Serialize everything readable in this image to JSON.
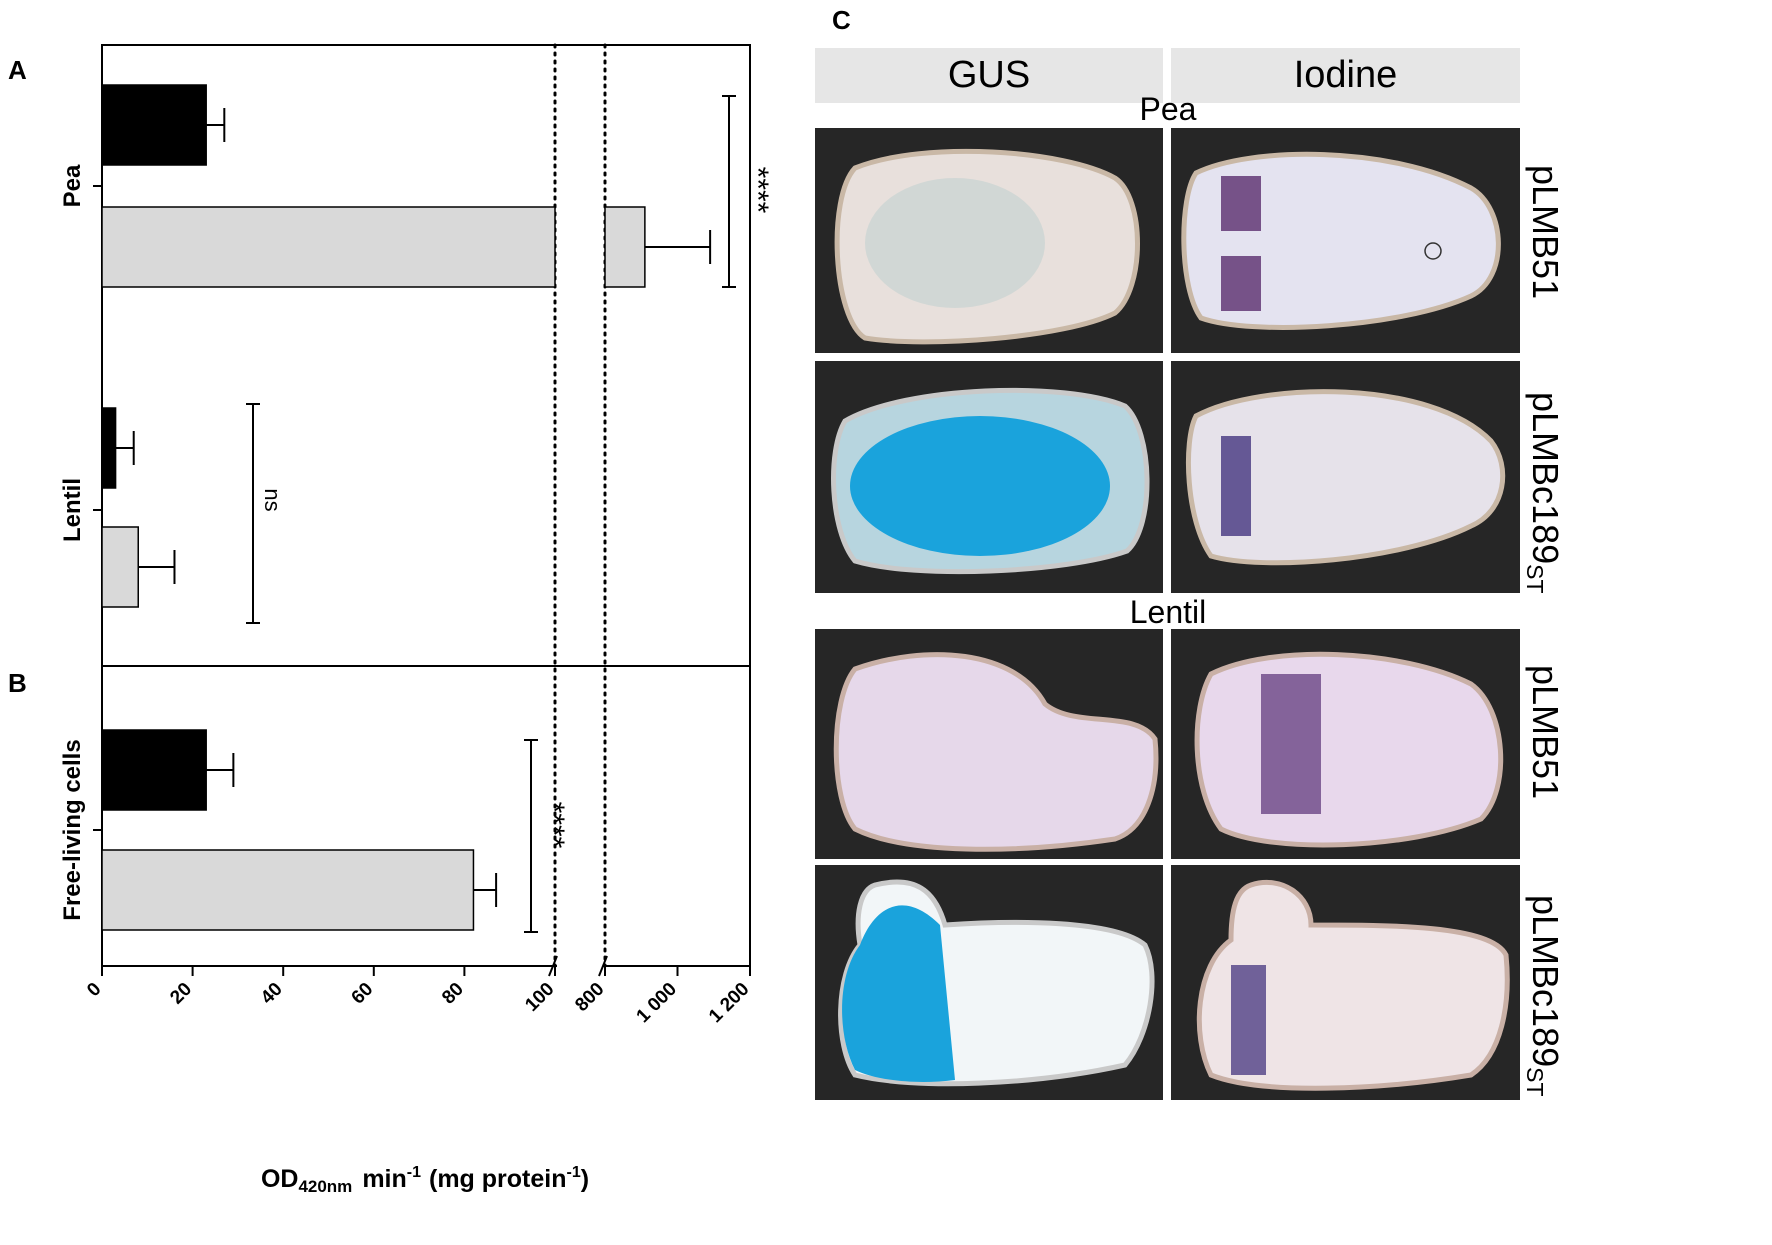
{
  "panels": {
    "a": "A",
    "b": "B",
    "c": "C"
  },
  "chart_data": {
    "type": "bar",
    "orientation": "horizontal",
    "x_axis": {
      "label_main": "OD",
      "label_sub": "420nm",
      "label_rest": "min",
      "label_exp1": "-1",
      "label_paren": "(mg protein",
      "label_exp2": "-1",
      "label_close": ")",
      "broken": true,
      "segment1": {
        "range": [
          0,
          100
        ],
        "ticks": [
          "0",
          "20",
          "40",
          "60",
          "80",
          "100"
        ]
      },
      "segment2": {
        "range": [
          800,
          1200
        ],
        "ticks": [
          "800",
          "1 000",
          "1 200"
        ]
      }
    },
    "groups": [
      {
        "name": "Pea",
        "panel": "A",
        "values": [
          23,
          910
        ],
        "errors": [
          4,
          180
        ],
        "significance": "****"
      },
      {
        "name": "Lentil",
        "panel": "A",
        "values": [
          3,
          8
        ],
        "errors": [
          4,
          8
        ],
        "significance": "ns"
      },
      {
        "name": "Free-living cells",
        "panel": "B",
        "values": [
          23,
          82
        ],
        "errors": [
          6,
          5
        ],
        "significance": "****"
      }
    ],
    "series_colors": [
      "#000000",
      "#d9d9d9"
    ]
  },
  "image_panel": {
    "columns": [
      "GUS",
      "Iodine"
    ],
    "plants": [
      "Pea",
      "Lentil"
    ],
    "rows": [
      {
        "plant": "Pea",
        "label": "pLMB51",
        "sub": ""
      },
      {
        "plant": "Pea",
        "label": "pLMBc189",
        "sub": "ST"
      },
      {
        "plant": "Lentil",
        "label": "pLMB51",
        "sub": ""
      },
      {
        "plant": "Lentil",
        "label": "pLMBc189",
        "sub": "ST"
      }
    ],
    "colors": {
      "header_bg": "#e6e6e6",
      "photo_bg": "#262626",
      "gus_blue": "#1aa3dc",
      "iodine_purple": "#4a2a66",
      "tissue": "#e9dfe6"
    }
  }
}
